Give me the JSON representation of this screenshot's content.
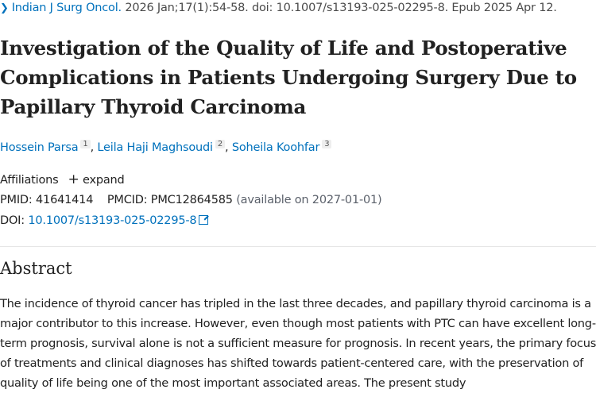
{
  "citation": {
    "journal": "Indian J Surg Oncol.",
    "details": " 2026 Jan;17(1):54-58. doi: 10.1007/s13193-025-02295-8. Epub 2025 Apr 12."
  },
  "title": "Investigation of the Quality of Life and Postoperative Complications in Patients Undergoing Surgery Due to Papillary Thyroid Carcinoma",
  "authors": [
    {
      "name": "Hossein Parsa",
      "sup": "1"
    },
    {
      "name": "Leila Haji Maghsoudi",
      "sup": "2"
    },
    {
      "name": "Soheila Koohfar",
      "sup": "3"
    }
  ],
  "affiliations": {
    "label": "Affiliations",
    "expand": "expand"
  },
  "ids": {
    "pmid_label": "PMID:",
    "pmid": "41641414",
    "pmcid_label": "PMCID:",
    "pmcid": "PMC12864585",
    "availability": "(available on 2027-01-01)"
  },
  "doi": {
    "label": "DOI:",
    "value": "10.1007/s13193-025-02295-8"
  },
  "abstract": {
    "heading": "Abstract",
    "text": "The incidence of thyroid cancer has tripled in the last three decades, and papillary thyroid carcinoma is a major contributor to this increase. However, even though most patients with PTC can have excellent long-term prognosis, survival alone is not a sufficient measure for prognosis. In recent years, the primary focus of treatments and clinical diagnoses has shifted towards patient-centered care, with the preservation of quality of life being one of the most important associated areas. The present study"
  },
  "colors": {
    "link": "#0071bc",
    "text": "#212121"
  }
}
